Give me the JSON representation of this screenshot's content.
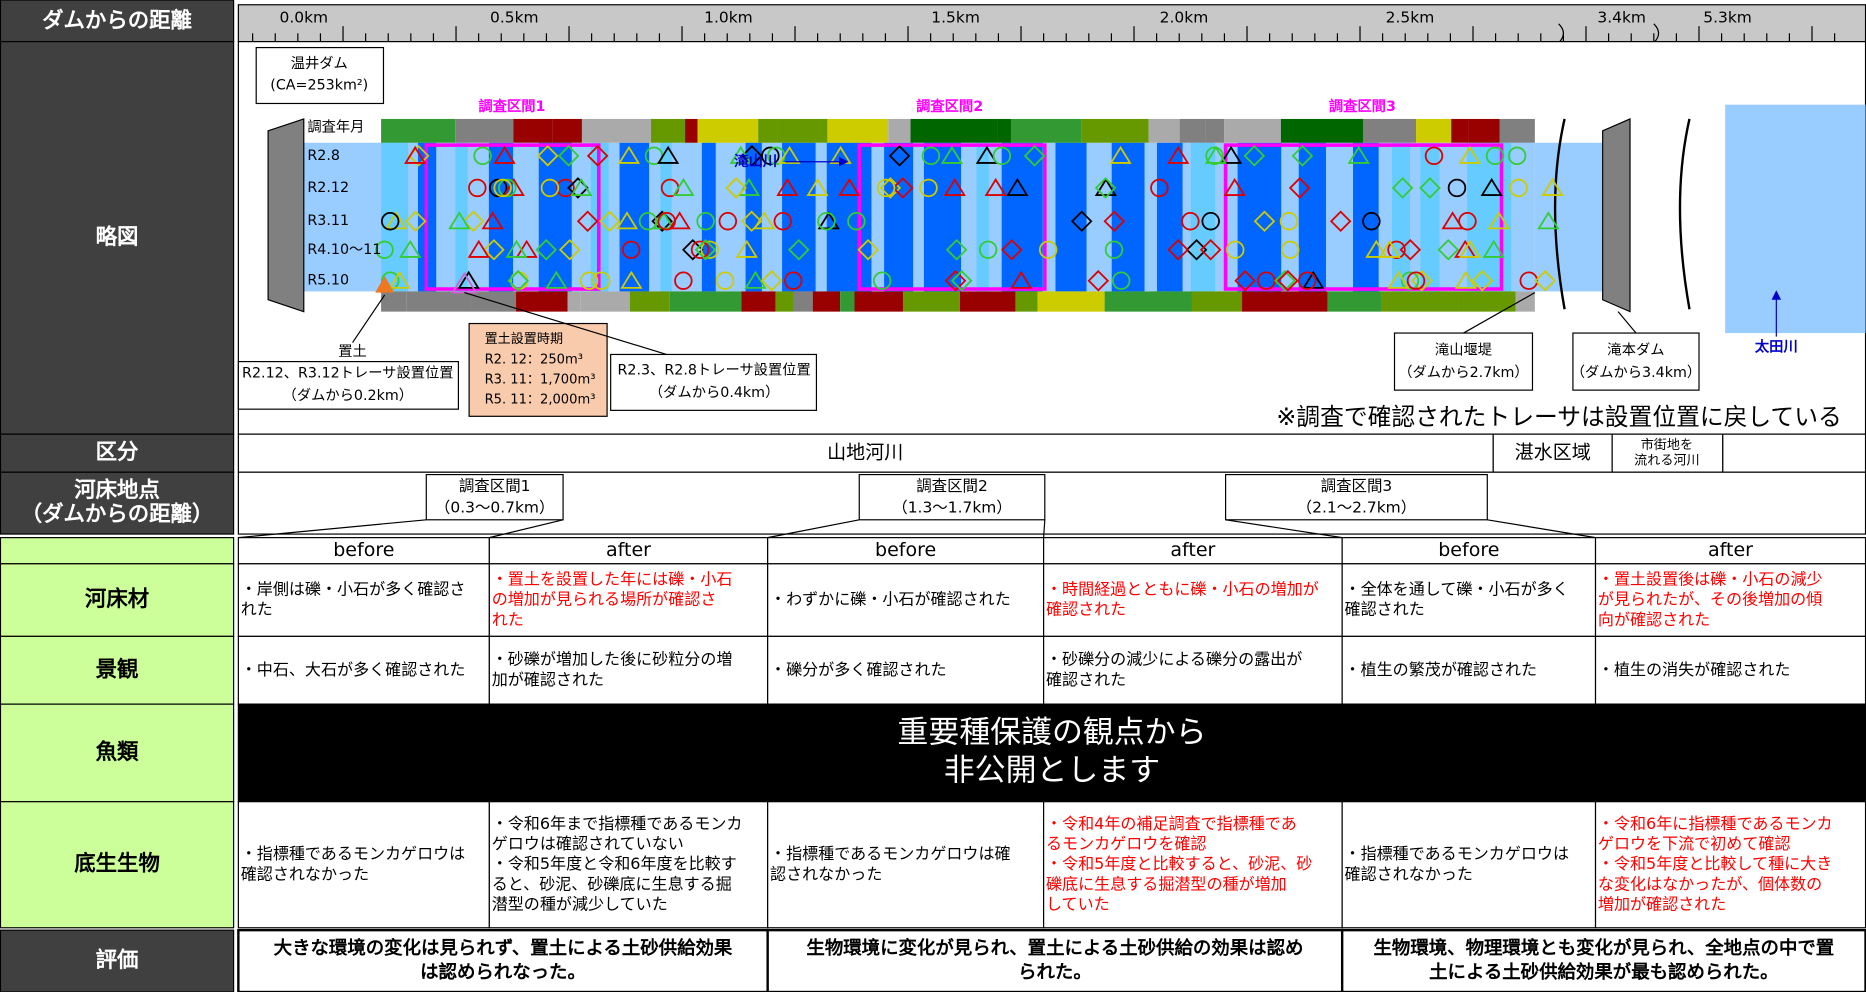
{
  "header": {
    "distance": "ダムからの距離",
    "sketch": "略図",
    "division": "区分",
    "point": [
      "河床地点",
      "（ダムからの距離）"
    ]
  },
  "scale": [
    "0.0km",
    "0.5km",
    "1.0km",
    "1.5km",
    "2.0km",
    "2.5km",
    "3.4km",
    "5.3km"
  ],
  "diagram": {
    "dam": [
      "温井ダム",
      "(CA=253km²)"
    ],
    "survey_label": "調査年月",
    "surveys": [
      "R2.8",
      "R2.12",
      "R3.11",
      "R4.10～11",
      "R5.10"
    ],
    "sections": [
      "調査区間1",
      "調査区間2",
      "調査区間3"
    ],
    "tributary": "滝山川",
    "placement": [
      "置土",
      "R2.12、R3.12トレーサ設置位置",
      "（ダムから0.2km）"
    ],
    "placement_time": [
      "置土設置時期",
      "R2. 12：250m³",
      "R3. 11：1,700m³",
      "R5. 11：2,000m³"
    ],
    "tracer": [
      "R2.3、R2.8トレーサ設置位置",
      "（ダムから0.4km）"
    ],
    "weir": [
      "滝山堰堤",
      "（ダムから2.7km）"
    ],
    "lower_dam": [
      "滝本ダム",
      "（ダムから3.4km）"
    ],
    "main_river": "太田川",
    "note": "※調査で確認されたトレーサは設置位置に戻している"
  },
  "division": [
    "山地河川",
    "湛水区域",
    [
      "市街地を",
      "流れる河川"
    ]
  ],
  "points": [
    [
      "調査区間1",
      "（0.3～0.7km）"
    ],
    [
      "調査区間2",
      "（1.3～1.7km）"
    ],
    [
      "調査区間3",
      "（2.1～2.7km）"
    ]
  ],
  "table": {
    "columns": [
      "before",
      "after",
      "before",
      "after",
      "before",
      "after"
    ],
    "rows": [
      {
        "label": "河床材",
        "colors": [
          "#000000",
          "#ff0000",
          "#000000",
          "#ff0000",
          "#000000",
          "#ff0000"
        ],
        "cells": [
          [
            "・岸側は礫・小石が多く確認さ",
            "れた"
          ],
          [
            "・置土を設置した年には礫・小石",
            "の増加が見られる場所が確認さ",
            "れた"
          ],
          [
            "・わずかに礫・小石が確認された"
          ],
          [
            "・時間経過とともに礫・小石の増加が",
            "確認された"
          ],
          [
            "・全体を通して礫・小石が多く",
            "確認された"
          ],
          [
            "・置土設置後は礫・小石の減少",
            "が見られたが、その後増加の傾",
            "向が確認された"
          ]
        ]
      },
      {
        "label": "景観",
        "colors": [
          "#000000",
          "#000000",
          "#000000",
          "#000000",
          "#000000",
          "#000000"
        ],
        "cells": [
          [
            "・中石、大石が多く確認された"
          ],
          [
            "・砂礫が増加した後に砂粒分の増",
            "加が確認された"
          ],
          [
            "・礫分が多く確認された"
          ],
          [
            "・砂礫分の減少による礫分の露出が",
            "確認された"
          ],
          [
            "・植生の繁茂が確認された"
          ],
          [
            "・植生の消失が確認された"
          ]
        ]
      },
      {
        "label": "魚類",
        "text": [
          "重要種保護の観点から",
          "非公開とします"
        ]
      },
      {
        "label": "底生生物",
        "colors": [
          "#000000",
          "#000000",
          "#000000",
          "#ff0000",
          "#000000",
          "#ff0000"
        ],
        "cells": [
          [
            "・指標種であるモンカゲロウは",
            "確認されなかった"
          ],
          [
            "・令和6年まで指標種であるモンカ",
            "ゲロウは確認されていない",
            "・令和5年度と令和6年度を比較す",
            "ると、砂泥、砂礫底に生息する掘",
            "潜型の種が減少していた"
          ],
          [
            "・指標種であるモンカゲロウは確",
            "認されなかった"
          ],
          [
            "・令和4年の補足調査で指標種であ",
            "るモンカゲロウを確認",
            "・令和5年度と比較すると、砂泥、砂",
            "礫底に生息する掘潜型の種が増加",
            "していた"
          ],
          [
            "・指標種であるモンカゲロウは",
            "確認されなかった"
          ],
          [
            "・令和6年に指標種であるモンカ",
            "ゲロウを下流で初めて確認",
            "・令和5年度と比較して種に大き",
            "な変化はなかったが、個体数の",
            "増加が確認された"
          ]
        ]
      }
    ],
    "evaluation": {
      "label": "評価",
      "cells": [
        [
          "大きな環境の変化は見られず、置土による土砂供給効果",
          "は認められなった。"
        ],
        [
          "生物環境に変化が見られ、置土による土砂供給の効果は認め",
          "られた。"
        ],
        [
          "生物環境、物理環境とも変化が見られ、全地点の中で置",
          "土による土砂供給効果が最も認められた。"
        ]
      ]
    }
  }
}
